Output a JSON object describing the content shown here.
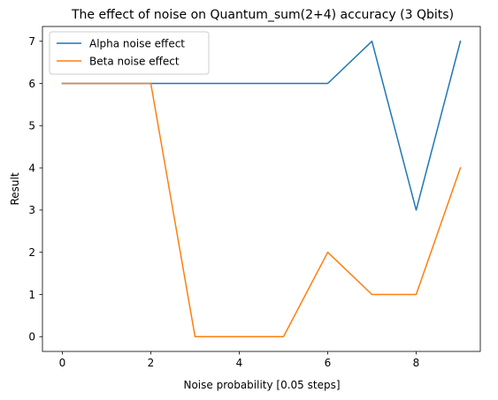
{
  "chart_data": {
    "type": "line",
    "title": "The effect of noise on Quantum_sum(2+4) accuracy (3 Qbits)",
    "xlabel": "Noise probability [0.05 steps]",
    "ylabel": "Result",
    "x": [
      0,
      1,
      2,
      3,
      4,
      5,
      6,
      7,
      8,
      9
    ],
    "xlim": [
      -0.45,
      9.45
    ],
    "ylim": [
      -0.35,
      7.35
    ],
    "xticks": [
      0,
      2,
      4,
      6,
      8
    ],
    "yticks": [
      0,
      1,
      2,
      3,
      4,
      5,
      6,
      7
    ],
    "grid": false,
    "legend_position": "upper-left",
    "series": [
      {
        "name": "Alpha noise effect",
        "color": "#1f77b4",
        "values": [
          6,
          6,
          6,
          6,
          6,
          6,
          6,
          7,
          3,
          7
        ]
      },
      {
        "name": "Beta noise effect",
        "color": "#ff7f0e",
        "values": [
          6,
          6,
          6,
          0,
          0,
          0,
          2,
          1,
          1,
          4
        ]
      }
    ]
  }
}
